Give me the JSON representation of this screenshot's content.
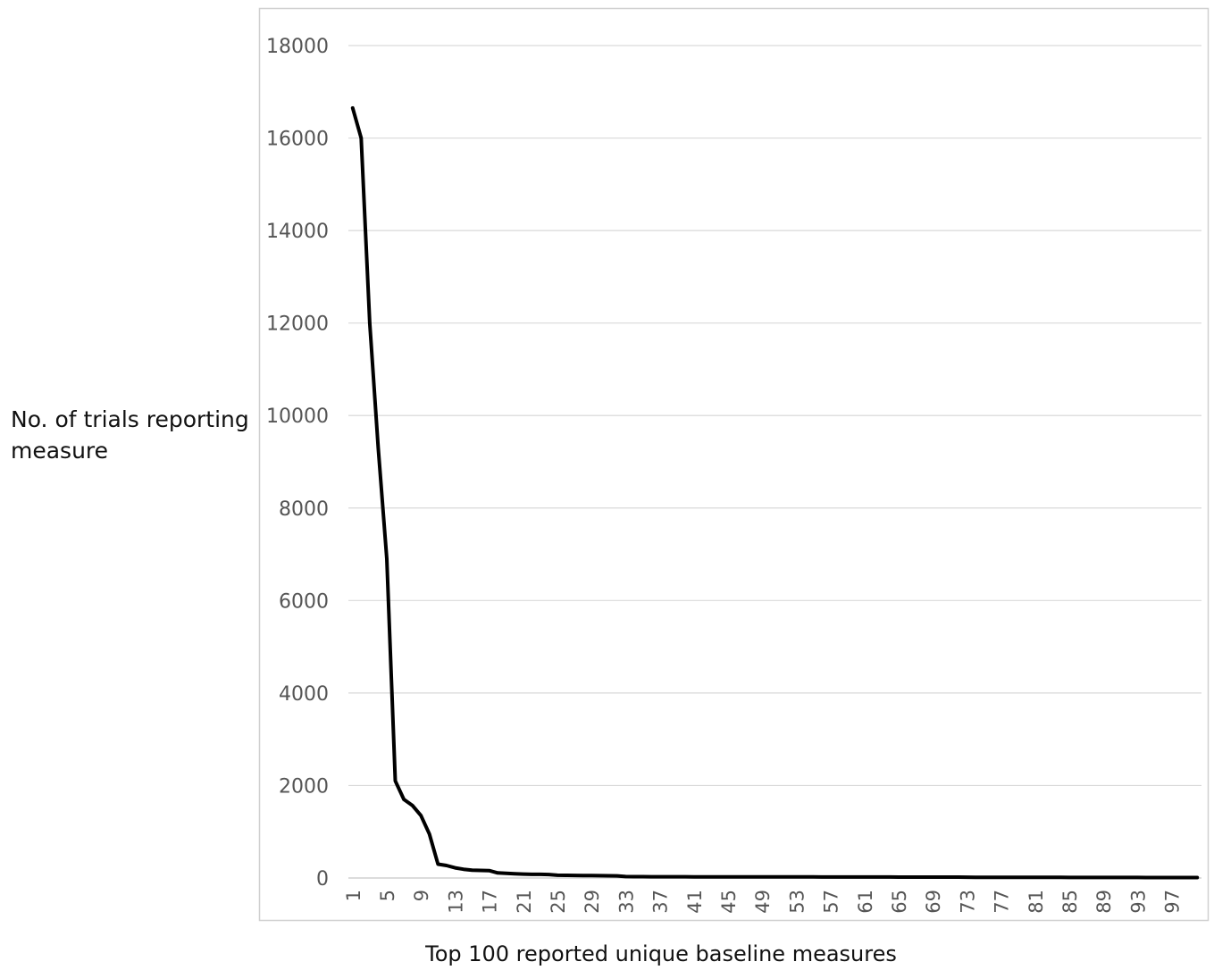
{
  "chart_data": {
    "type": "line",
    "title": "",
    "xlabel": "Top 100 reported unique baseline measures",
    "ylabel": "No. of trials reporting measure",
    "ylim": [
      0,
      18000
    ],
    "yticks": [
      0,
      2000,
      4000,
      6000,
      8000,
      10000,
      12000,
      14000,
      16000,
      18000
    ],
    "xtick_labels": [
      "1",
      "5",
      "9",
      "13",
      "17",
      "21",
      "25",
      "29",
      "33",
      "37",
      "41",
      "45",
      "49",
      "53",
      "57",
      "61",
      "65",
      "69",
      "73",
      "77",
      "81",
      "85",
      "89",
      "93",
      "97"
    ],
    "grid": true,
    "legend": "none",
    "line_color": "#000000",
    "x": [
      1,
      2,
      3,
      4,
      5,
      6,
      7,
      8,
      9,
      10,
      11,
      12,
      13,
      14,
      15,
      16,
      17,
      18,
      19,
      20,
      21,
      22,
      23,
      24,
      25,
      26,
      27,
      28,
      29,
      30,
      31,
      32,
      33,
      34,
      35,
      36,
      37,
      38,
      39,
      40,
      41,
      42,
      43,
      44,
      45,
      46,
      47,
      48,
      49,
      50,
      51,
      52,
      53,
      54,
      55,
      56,
      57,
      58,
      59,
      60,
      61,
      62,
      63,
      64,
      65,
      66,
      67,
      68,
      69,
      70,
      71,
      72,
      73,
      74,
      75,
      76,
      77,
      78,
      79,
      80,
      81,
      82,
      83,
      84,
      85,
      86,
      87,
      88,
      89,
      90,
      91,
      92,
      93,
      94,
      95,
      96,
      97,
      98,
      99,
      100
    ],
    "series": [
      {
        "values": [
          16650,
          16000,
          12000,
          9300,
          6900,
          2100,
          1700,
          1570,
          1350,
          950,
          300,
          270,
          220,
          190,
          170,
          165,
          160,
          110,
          100,
          90,
          85,
          80,
          80,
          75,
          60,
          58,
          56,
          54,
          52,
          50,
          48,
          47,
          30,
          29,
          29,
          28,
          28,
          27,
          27,
          27,
          26,
          26,
          26,
          25,
          25,
          25,
          25,
          24,
          24,
          24,
          24,
          23,
          23,
          23,
          23,
          22,
          22,
          22,
          22,
          22,
          21,
          21,
          21,
          21,
          20,
          20,
          20,
          20,
          20,
          20,
          19,
          19,
          18,
          15,
          15,
          15,
          14,
          14,
          14,
          14,
          13,
          13,
          13,
          13,
          12,
          12,
          12,
          12,
          12,
          11,
          11,
          11,
          11,
          10,
          10,
          10,
          10,
          10,
          10,
          9
        ]
      }
    ]
  }
}
